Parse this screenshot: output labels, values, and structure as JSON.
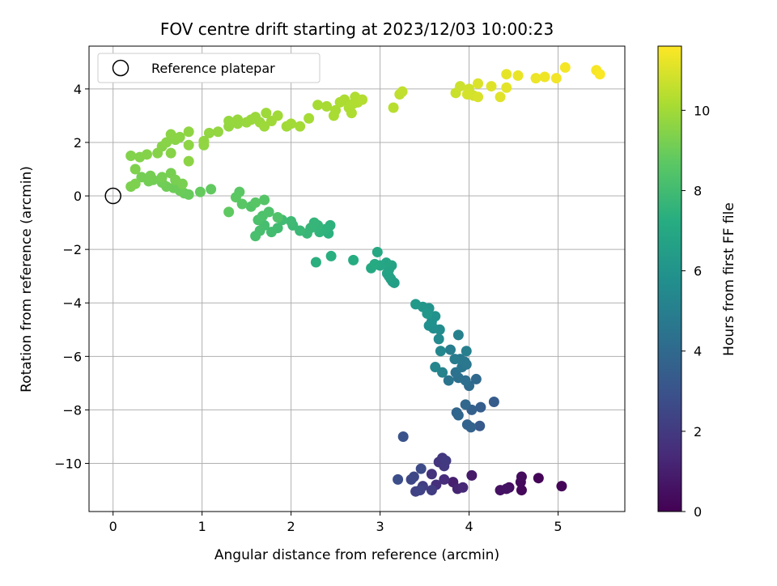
{
  "chart_data": {
    "type": "scatter",
    "title": "FOV centre drift starting at 2023/12/03 10:00:23",
    "xlabel": "Angular distance from reference (arcmin)",
    "ylabel": "Rotation from reference (arcmin)",
    "xlim": [
      -0.27,
      5.75
    ],
    "ylim": [
      -11.8,
      5.6
    ],
    "xticks": [
      "0",
      "1",
      "2",
      "3",
      "4",
      "5"
    ],
    "xtick_values": [
      0,
      1,
      2,
      3,
      4,
      5
    ],
    "yticks": [
      "−10",
      "−8",
      "−6",
      "−4",
      "−2",
      "0",
      "2",
      "4"
    ],
    "ytick_values": [
      -10,
      -8,
      -6,
      -4,
      -2,
      0,
      2,
      4
    ],
    "grid": true,
    "colormap": "viridis",
    "colorbar": {
      "label": "Hours from first FF file",
      "range": [
        0,
        11.6
      ],
      "ticks": [
        "0",
        "2",
        "4",
        "6",
        "8",
        "10"
      ],
      "tick_values": [
        0,
        2,
        4,
        6,
        8,
        10
      ]
    },
    "legend": {
      "position": "top-left",
      "entries": [
        {
          "label": "Reference platepar",
          "marker": "open-circle"
        }
      ]
    },
    "reference_point": {
      "x": 0,
      "y": 0
    },
    "points": [
      {
        "x": 4.78,
        "y": -10.55,
        "t": 0.1
      },
      {
        "x": 5.04,
        "y": -10.85,
        "t": 0.15
      },
      {
        "x": 4.59,
        "y": -11.0,
        "t": 0.25
      },
      {
        "x": 4.58,
        "y": -10.7,
        "t": 0.3
      },
      {
        "x": 4.59,
        "y": -10.5,
        "t": 0.35
      },
      {
        "x": 4.45,
        "y": -10.9,
        "t": 0.45
      },
      {
        "x": 4.35,
        "y": -11.0,
        "t": 0.55
      },
      {
        "x": 4.42,
        "y": -10.95,
        "t": 0.6
      },
      {
        "x": 4.03,
        "y": -10.45,
        "t": 0.8
      },
      {
        "x": 3.82,
        "y": -10.7,
        "t": 1.0
      },
      {
        "x": 3.87,
        "y": -10.95,
        "t": 1.2
      },
      {
        "x": 3.93,
        "y": -10.9,
        "t": 1.3
      },
      {
        "x": 3.72,
        "y": -10.6,
        "t": 1.5
      },
      {
        "x": 3.63,
        "y": -10.8,
        "t": 1.6
      },
      {
        "x": 3.58,
        "y": -10.4,
        "t": 1.7
      },
      {
        "x": 3.66,
        "y": -9.95,
        "t": 1.8
      },
      {
        "x": 3.7,
        "y": -9.8,
        "t": 1.9
      },
      {
        "x": 3.72,
        "y": -10.1,
        "t": 1.95
      },
      {
        "x": 3.74,
        "y": -9.9,
        "t": 2.0
      },
      {
        "x": 3.58,
        "y": -11.0,
        "t": 2.1
      },
      {
        "x": 3.48,
        "y": -10.85,
        "t": 2.2
      },
      {
        "x": 3.4,
        "y": -11.05,
        "t": 2.3
      },
      {
        "x": 3.45,
        "y": -11.0,
        "t": 2.35
      },
      {
        "x": 3.35,
        "y": -10.6,
        "t": 2.45
      },
      {
        "x": 3.38,
        "y": -10.5,
        "t": 2.55
      },
      {
        "x": 3.46,
        "y": -10.2,
        "t": 2.65
      },
      {
        "x": 3.2,
        "y": -10.6,
        "t": 2.8
      },
      {
        "x": 3.26,
        "y": -9.0,
        "t": 3.0
      },
      {
        "x": 4.12,
        "y": -8.6,
        "t": 3.3
      },
      {
        "x": 4.28,
        "y": -7.7,
        "t": 3.4
      },
      {
        "x": 4.13,
        "y": -7.9,
        "t": 3.5
      },
      {
        "x": 4.03,
        "y": -8.0,
        "t": 3.6
      },
      {
        "x": 3.98,
        "y": -8.55,
        "t": 3.65
      },
      {
        "x": 4.02,
        "y": -8.65,
        "t": 3.7
      },
      {
        "x": 3.86,
        "y": -8.1,
        "t": 3.8
      },
      {
        "x": 3.88,
        "y": -8.2,
        "t": 3.85
      },
      {
        "x": 3.96,
        "y": -7.8,
        "t": 3.9
      },
      {
        "x": 4.08,
        "y": -6.85,
        "t": 4.0
      },
      {
        "x": 4.0,
        "y": -7.1,
        "t": 4.1
      },
      {
        "x": 3.96,
        "y": -6.9,
        "t": 4.2
      },
      {
        "x": 3.88,
        "y": -6.8,
        "t": 4.3
      },
      {
        "x": 3.85,
        "y": -6.6,
        "t": 4.4
      },
      {
        "x": 3.77,
        "y": -6.9,
        "t": 4.5
      },
      {
        "x": 3.92,
        "y": -6.4,
        "t": 4.55
      },
      {
        "x": 3.95,
        "y": -6.2,
        "t": 4.6
      },
      {
        "x": 3.97,
        "y": -6.3,
        "t": 4.65
      },
      {
        "x": 3.9,
        "y": -6.1,
        "t": 4.7
      },
      {
        "x": 3.84,
        "y": -6.1,
        "t": 4.8
      },
      {
        "x": 3.79,
        "y": -5.75,
        "t": 4.9
      },
      {
        "x": 3.97,
        "y": -5.8,
        "t": 5.0
      },
      {
        "x": 3.88,
        "y": -5.2,
        "t": 5.1
      },
      {
        "x": 3.7,
        "y": -6.6,
        "t": 5.2
      },
      {
        "x": 3.62,
        "y": -6.4,
        "t": 5.3
      },
      {
        "x": 3.68,
        "y": -5.8,
        "t": 5.4
      },
      {
        "x": 3.66,
        "y": -5.35,
        "t": 5.5
      },
      {
        "x": 3.67,
        "y": -5.0,
        "t": 5.6
      },
      {
        "x": 3.6,
        "y": -4.95,
        "t": 5.7
      },
      {
        "x": 3.55,
        "y": -4.85,
        "t": 5.8
      },
      {
        "x": 3.58,
        "y": -4.7,
        "t": 5.85
      },
      {
        "x": 3.62,
        "y": -4.5,
        "t": 5.9
      },
      {
        "x": 3.55,
        "y": -4.2,
        "t": 6.0
      },
      {
        "x": 3.48,
        "y": -4.15,
        "t": 6.1
      },
      {
        "x": 3.53,
        "y": -4.4,
        "t": 6.2
      },
      {
        "x": 3.4,
        "y": -4.05,
        "t": 6.3
      },
      {
        "x": 3.16,
        "y": -3.25,
        "t": 6.5
      },
      {
        "x": 3.14,
        "y": -3.2,
        "t": 6.55
      },
      {
        "x": 3.12,
        "y": -3.1,
        "t": 6.6
      },
      {
        "x": 3.1,
        "y": -3.0,
        "t": 6.65
      },
      {
        "x": 3.08,
        "y": -2.9,
        "t": 6.7
      },
      {
        "x": 3.1,
        "y": -2.75,
        "t": 6.75
      },
      {
        "x": 3.13,
        "y": -2.6,
        "t": 6.8
      },
      {
        "x": 3.07,
        "y": -2.5,
        "t": 6.85
      },
      {
        "x": 3.0,
        "y": -2.6,
        "t": 6.9
      },
      {
        "x": 2.97,
        "y": -2.1,
        "t": 7.0
      },
      {
        "x": 2.9,
        "y": -2.7,
        "t": 7.05
      },
      {
        "x": 2.94,
        "y": -2.55,
        "t": 7.1
      },
      {
        "x": 2.7,
        "y": -2.4,
        "t": 7.2
      },
      {
        "x": 2.45,
        "y": -2.25,
        "t": 7.3
      },
      {
        "x": 2.28,
        "y": -2.48,
        "t": 7.35
      },
      {
        "x": 2.42,
        "y": -1.4,
        "t": 7.4
      },
      {
        "x": 2.44,
        "y": -1.1,
        "t": 7.45
      },
      {
        "x": 2.38,
        "y": -1.25,
        "t": 7.5
      },
      {
        "x": 2.32,
        "y": -1.35,
        "t": 7.55
      },
      {
        "x": 2.3,
        "y": -1.1,
        "t": 7.6
      },
      {
        "x": 2.26,
        "y": -1.0,
        "t": 7.65
      },
      {
        "x": 2.22,
        "y": -1.2,
        "t": 7.7
      },
      {
        "x": 2.18,
        "y": -1.4,
        "t": 7.75
      },
      {
        "x": 2.1,
        "y": -1.3,
        "t": 7.8
      },
      {
        "x": 2.02,
        "y": -1.1,
        "t": 7.85
      },
      {
        "x": 2.0,
        "y": -0.95,
        "t": 7.9
      },
      {
        "x": 1.9,
        "y": -0.9,
        "t": 7.95
      },
      {
        "x": 1.85,
        "y": -1.2,
        "t": 8.0
      },
      {
        "x": 1.78,
        "y": -1.35,
        "t": 8.05
      },
      {
        "x": 1.7,
        "y": -1.1,
        "t": 8.1
      },
      {
        "x": 1.65,
        "y": -1.3,
        "t": 8.15
      },
      {
        "x": 1.6,
        "y": -1.5,
        "t": 8.2
      },
      {
        "x": 1.63,
        "y": -0.9,
        "t": 8.25
      },
      {
        "x": 1.68,
        "y": -0.75,
        "t": 8.3
      },
      {
        "x": 1.75,
        "y": -0.6,
        "t": 8.35
      },
      {
        "x": 1.85,
        "y": -0.8,
        "t": 8.4
      },
      {
        "x": 1.55,
        "y": -0.4,
        "t": 8.45
      },
      {
        "x": 1.7,
        "y": -0.15,
        "t": 8.5
      },
      {
        "x": 1.6,
        "y": -0.25,
        "t": 8.55
      },
      {
        "x": 1.45,
        "y": -0.3,
        "t": 8.6
      },
      {
        "x": 1.42,
        "y": 0.15,
        "t": 8.65
      },
      {
        "x": 1.38,
        "y": -0.05,
        "t": 8.7
      },
      {
        "x": 1.3,
        "y": -0.6,
        "t": 8.75
      },
      {
        "x": 1.1,
        "y": 0.25,
        "t": 8.8
      },
      {
        "x": 0.98,
        "y": 0.15,
        "t": 8.85
      },
      {
        "x": 0.85,
        "y": 0.05,
        "t": 8.9
      },
      {
        "x": 0.8,
        "y": 0.1,
        "t": 8.95
      },
      {
        "x": 0.75,
        "y": 0.2,
        "t": 9.0
      },
      {
        "x": 0.68,
        "y": 0.3,
        "t": 9.02
      },
      {
        "x": 0.6,
        "y": 0.35,
        "t": 9.05
      },
      {
        "x": 0.55,
        "y": 0.5,
        "t": 9.08
      },
      {
        "x": 0.45,
        "y": 0.6,
        "t": 9.1
      },
      {
        "x": 0.4,
        "y": 0.55,
        "t": 9.12
      },
      {
        "x": 0.32,
        "y": 0.7,
        "t": 9.14
      },
      {
        "x": 0.42,
        "y": 0.75,
        "t": 9.16
      },
      {
        "x": 0.55,
        "y": 0.7,
        "t": 9.18
      },
      {
        "x": 0.65,
        "y": 0.85,
        "t": 9.2
      },
      {
        "x": 0.7,
        "y": 0.6,
        "t": 9.22
      },
      {
        "x": 0.78,
        "y": 0.45,
        "t": 9.24
      },
      {
        "x": 0.2,
        "y": 0.35,
        "t": 9.3
      },
      {
        "x": 0.25,
        "y": 0.45,
        "t": 9.32
      },
      {
        "x": 0.25,
        "y": 1.0,
        "t": 9.35
      },
      {
        "x": 0.2,
        "y": 1.5,
        "t": 9.4
      },
      {
        "x": 0.3,
        "y": 1.45,
        "t": 9.42
      },
      {
        "x": 0.38,
        "y": 1.55,
        "t": 9.44
      },
      {
        "x": 0.5,
        "y": 1.6,
        "t": 9.46
      },
      {
        "x": 0.55,
        "y": 1.85,
        "t": 9.48
      },
      {
        "x": 0.65,
        "y": 1.6,
        "t": 9.5
      },
      {
        "x": 0.6,
        "y": 2.0,
        "t": 9.52
      },
      {
        "x": 0.7,
        "y": 2.1,
        "t": 9.54
      },
      {
        "x": 0.65,
        "y": 2.3,
        "t": 9.56
      },
      {
        "x": 0.75,
        "y": 2.2,
        "t": 9.58
      },
      {
        "x": 0.85,
        "y": 1.3,
        "t": 9.6
      },
      {
        "x": 0.85,
        "y": 1.9,
        "t": 9.62
      },
      {
        "x": 0.85,
        "y": 2.4,
        "t": 9.64
      },
      {
        "x": 1.02,
        "y": 1.9,
        "t": 9.66
      },
      {
        "x": 1.02,
        "y": 2.05,
        "t": 9.68
      },
      {
        "x": 1.08,
        "y": 2.35,
        "t": 9.7
      },
      {
        "x": 1.18,
        "y": 2.4,
        "t": 9.72
      },
      {
        "x": 1.3,
        "y": 2.6,
        "t": 9.74
      },
      {
        "x": 1.3,
        "y": 2.8,
        "t": 9.76
      },
      {
        "x": 1.4,
        "y": 2.7,
        "t": 9.78
      },
      {
        "x": 1.4,
        "y": 2.85,
        "t": 9.8
      },
      {
        "x": 1.5,
        "y": 2.75,
        "t": 9.82
      },
      {
        "x": 1.55,
        "y": 2.85,
        "t": 9.84
      },
      {
        "x": 1.6,
        "y": 2.95,
        "t": 9.86
      },
      {
        "x": 1.65,
        "y": 2.75,
        "t": 9.88
      },
      {
        "x": 1.7,
        "y": 2.6,
        "t": 9.9
      },
      {
        "x": 1.72,
        "y": 3.1,
        "t": 9.92
      },
      {
        "x": 1.78,
        "y": 2.8,
        "t": 9.94
      },
      {
        "x": 1.85,
        "y": 3.0,
        "t": 9.96
      },
      {
        "x": 1.95,
        "y": 2.6,
        "t": 9.98
      },
      {
        "x": 2.0,
        "y": 2.7,
        "t": 10.0
      },
      {
        "x": 2.1,
        "y": 2.6,
        "t": 10.02
      },
      {
        "x": 2.2,
        "y": 2.9,
        "t": 10.05
      },
      {
        "x": 2.3,
        "y": 3.4,
        "t": 10.08
      },
      {
        "x": 2.4,
        "y": 3.35,
        "t": 10.1
      },
      {
        "x": 2.5,
        "y": 3.2,
        "t": 10.12
      },
      {
        "x": 2.48,
        "y": 3.0,
        "t": 10.14
      },
      {
        "x": 2.55,
        "y": 3.5,
        "t": 10.16
      },
      {
        "x": 2.6,
        "y": 3.6,
        "t": 10.18
      },
      {
        "x": 2.65,
        "y": 3.3,
        "t": 10.2
      },
      {
        "x": 2.68,
        "y": 3.1,
        "t": 10.22
      },
      {
        "x": 2.7,
        "y": 3.45,
        "t": 10.24
      },
      {
        "x": 2.72,
        "y": 3.7,
        "t": 10.26
      },
      {
        "x": 2.75,
        "y": 3.5,
        "t": 10.28
      },
      {
        "x": 2.8,
        "y": 3.6,
        "t": 10.3
      },
      {
        "x": 3.15,
        "y": 3.3,
        "t": 10.4
      },
      {
        "x": 3.22,
        "y": 3.8,
        "t": 10.5
      },
      {
        "x": 3.25,
        "y": 3.9,
        "t": 10.55
      },
      {
        "x": 3.85,
        "y": 3.85,
        "t": 10.7
      },
      {
        "x": 3.9,
        "y": 4.1,
        "t": 10.75
      },
      {
        "x": 4.0,
        "y": 4.0,
        "t": 10.8
      },
      {
        "x": 4.05,
        "y": 3.75,
        "t": 10.85
      },
      {
        "x": 3.98,
        "y": 3.8,
        "t": 10.9
      },
      {
        "x": 4.1,
        "y": 3.7,
        "t": 10.95
      },
      {
        "x": 4.1,
        "y": 4.2,
        "t": 11.0
      },
      {
        "x": 4.25,
        "y": 4.1,
        "t": 11.05
      },
      {
        "x": 4.35,
        "y": 3.7,
        "t": 11.1
      },
      {
        "x": 4.42,
        "y": 4.05,
        "t": 11.15
      },
      {
        "x": 4.42,
        "y": 4.55,
        "t": 11.2
      },
      {
        "x": 4.55,
        "y": 4.5,
        "t": 11.25
      },
      {
        "x": 4.75,
        "y": 4.4,
        "t": 11.3
      },
      {
        "x": 4.85,
        "y": 4.45,
        "t": 11.35
      },
      {
        "x": 4.98,
        "y": 4.4,
        "t": 11.4
      },
      {
        "x": 5.08,
        "y": 4.8,
        "t": 11.45
      },
      {
        "x": 5.43,
        "y": 4.7,
        "t": 11.5
      },
      {
        "x": 5.47,
        "y": 4.55,
        "t": 11.55
      }
    ]
  }
}
